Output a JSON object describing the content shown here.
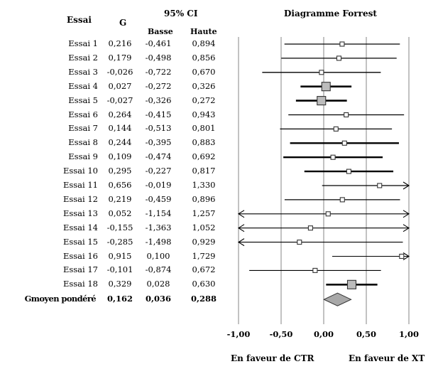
{
  "table": {
    "headers": {
      "study": "Essai",
      "g": "G",
      "ci": "95% CI",
      "lower": "Basse",
      "upper": "Haute",
      "plot_title": "Diagramme Forrest"
    },
    "rows": [
      {
        "label": "Essai 1",
        "g": "0,216",
        "lower": "-0,461",
        "upper": "0,894"
      },
      {
        "label": "Essai 2",
        "g": "0,179",
        "lower": "-0,498",
        "upper": "0,856"
      },
      {
        "label": "Essai 3",
        "g": "-0,026",
        "lower": "-0,722",
        "upper": "0,670"
      },
      {
        "label": "Essai 4",
        "g": "0,027",
        "lower": "-0,272",
        "upper": "0,326"
      },
      {
        "label": "Essai 5",
        "g": "-0,027",
        "lower": "-0,326",
        "upper": "0,272"
      },
      {
        "label": "Essai 6",
        "g": "0,264",
        "lower": "-0,415",
        "upper": "0,943"
      },
      {
        "label": "Essai 7",
        "g": "0,144",
        "lower": "-0,513",
        "upper": "0,801"
      },
      {
        "label": "Essai 8",
        "g": "0,244",
        "lower": "-0,395",
        "upper": "0,883"
      },
      {
        "label": "Essai 9",
        "g": "0,109",
        "lower": "-0,474",
        "upper": "0,692"
      },
      {
        "label": "Essai 10",
        "g": "0,295",
        "lower": "-0,227",
        "upper": "0,817"
      },
      {
        "label": "Essai 11",
        "g": "0,656",
        "lower": "-0,019",
        "upper": "1,330"
      },
      {
        "label": "Essai 12",
        "g": "0,219",
        "lower": "-0,459",
        "upper": "0,896"
      },
      {
        "label": "Essai 13",
        "g": "0,052",
        "lower": "-1,154",
        "upper": "1,257"
      },
      {
        "label": "Essai 14",
        "g": "-0,155",
        "lower": "-1,363",
        "upper": "1,052"
      },
      {
        "label": "Essai 15",
        "g": "-0,285",
        "lower": "-1,498",
        "upper": "0,929"
      },
      {
        "label": "Essai 16",
        "g": "0,915",
        "lower": "0,100",
        "upper": "1,729"
      },
      {
        "label": "Essai 17",
        "g": "-0,101",
        "lower": "-0,874",
        "upper": "0,672"
      },
      {
        "label": "Essai 18",
        "g": "0,329",
        "lower": "0,028",
        "upper": "0,630"
      }
    ],
    "summary": {
      "label": "Gmoyen pondéré",
      "g": "0,162",
      "lower": "0,036",
      "upper": "0,288"
    }
  },
  "chart_data": {
    "type": "forest",
    "title": "Diagramme Forrest",
    "xlim": [
      -1.0,
      1.0
    ],
    "xticks": [
      -1.0,
      -0.5,
      0.0,
      0.5,
      1.0
    ],
    "xtick_labels": [
      "-1,00",
      "-0,50",
      "0,00",
      "0,50",
      "1,00"
    ],
    "grid": true,
    "left_label": "En faveur de CTR",
    "right_label": "En faveur de XT",
    "studies": [
      {
        "name": "Essai 1",
        "g": 0.216,
        "lower": -0.461,
        "upper": 0.894,
        "weight": "small"
      },
      {
        "name": "Essai 2",
        "g": 0.179,
        "lower": -0.498,
        "upper": 0.856,
        "weight": "small"
      },
      {
        "name": "Essai 3",
        "g": -0.026,
        "lower": -0.722,
        "upper": 0.67,
        "weight": "small"
      },
      {
        "name": "Essai 4",
        "g": 0.027,
        "lower": -0.272,
        "upper": 0.326,
        "weight": "large"
      },
      {
        "name": "Essai 5",
        "g": -0.027,
        "lower": -0.326,
        "upper": 0.272,
        "weight": "large"
      },
      {
        "name": "Essai 6",
        "g": 0.264,
        "lower": -0.415,
        "upper": 0.943,
        "weight": "small"
      },
      {
        "name": "Essai 7",
        "g": 0.144,
        "lower": -0.513,
        "upper": 0.801,
        "weight": "small"
      },
      {
        "name": "Essai 8",
        "g": 0.244,
        "lower": -0.395,
        "upper": 0.883,
        "weight": "small"
      },
      {
        "name": "Essai 9",
        "g": 0.109,
        "lower": -0.474,
        "upper": 0.692,
        "weight": "small"
      },
      {
        "name": "Essai 10",
        "g": 0.295,
        "lower": -0.227,
        "upper": 0.817,
        "weight": "small"
      },
      {
        "name": "Essai 11",
        "g": 0.656,
        "lower": -0.019,
        "upper": 1.33,
        "weight": "small"
      },
      {
        "name": "Essai 12",
        "g": 0.219,
        "lower": -0.459,
        "upper": 0.896,
        "weight": "small"
      },
      {
        "name": "Essai 13",
        "g": 0.052,
        "lower": -1.154,
        "upper": 1.257,
        "weight": "small"
      },
      {
        "name": "Essai 14",
        "g": -0.155,
        "lower": -1.363,
        "upper": 1.052,
        "weight": "small"
      },
      {
        "name": "Essai 15",
        "g": -0.285,
        "lower": -1.498,
        "upper": 0.929,
        "weight": "small"
      },
      {
        "name": "Essai 16",
        "g": 0.915,
        "lower": 0.1,
        "upper": 1.729,
        "weight": "small"
      },
      {
        "name": "Essai 17",
        "g": -0.101,
        "lower": -0.874,
        "upper": 0.672,
        "weight": "small"
      },
      {
        "name": "Essai 18",
        "g": 0.329,
        "lower": 0.028,
        "upper": 0.63,
        "weight": "large"
      }
    ],
    "summary": {
      "name": "Gmoyen pondéré",
      "g": 0.162,
      "lower": 0.036,
      "upper": 0.288
    },
    "colors": {
      "marker_fill": "#bcbcbc",
      "marker_stroke": "#333333",
      "ci_line": "#000000",
      "grid": "#9a9a9a",
      "summary_fill": "#a8a8a8"
    }
  }
}
